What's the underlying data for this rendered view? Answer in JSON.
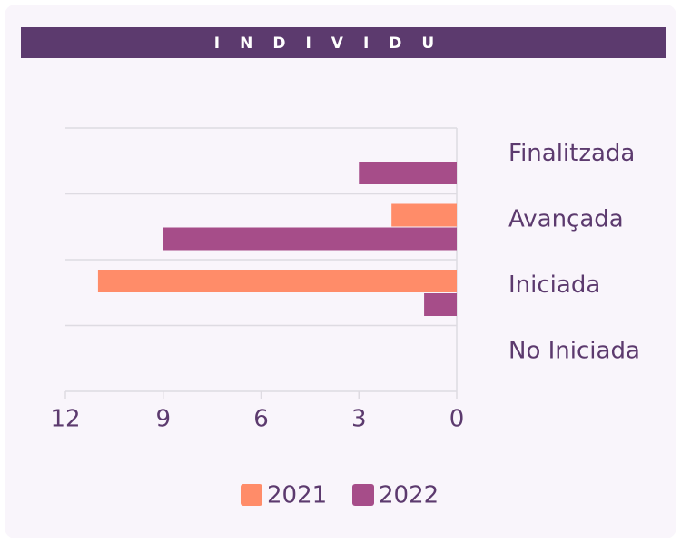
{
  "chart_data": {
    "type": "hbar",
    "title": "INDIVIDU",
    "categories": [
      "Finalitzada",
      "Avançada",
      "Iniciada",
      "No Iniciada"
    ],
    "series": [
      {
        "name": "2021",
        "color": "#ff8c69",
        "values": [
          0,
          2,
          11,
          0
        ]
      },
      {
        "name": "2022",
        "color": "#a64d89",
        "values": [
          3,
          9,
          1,
          0
        ]
      }
    ],
    "xlim": [
      0,
      12
    ],
    "xticks": [
      0,
      3,
      6,
      9,
      12
    ],
    "x_reversed": true,
    "legend": "bottom"
  }
}
